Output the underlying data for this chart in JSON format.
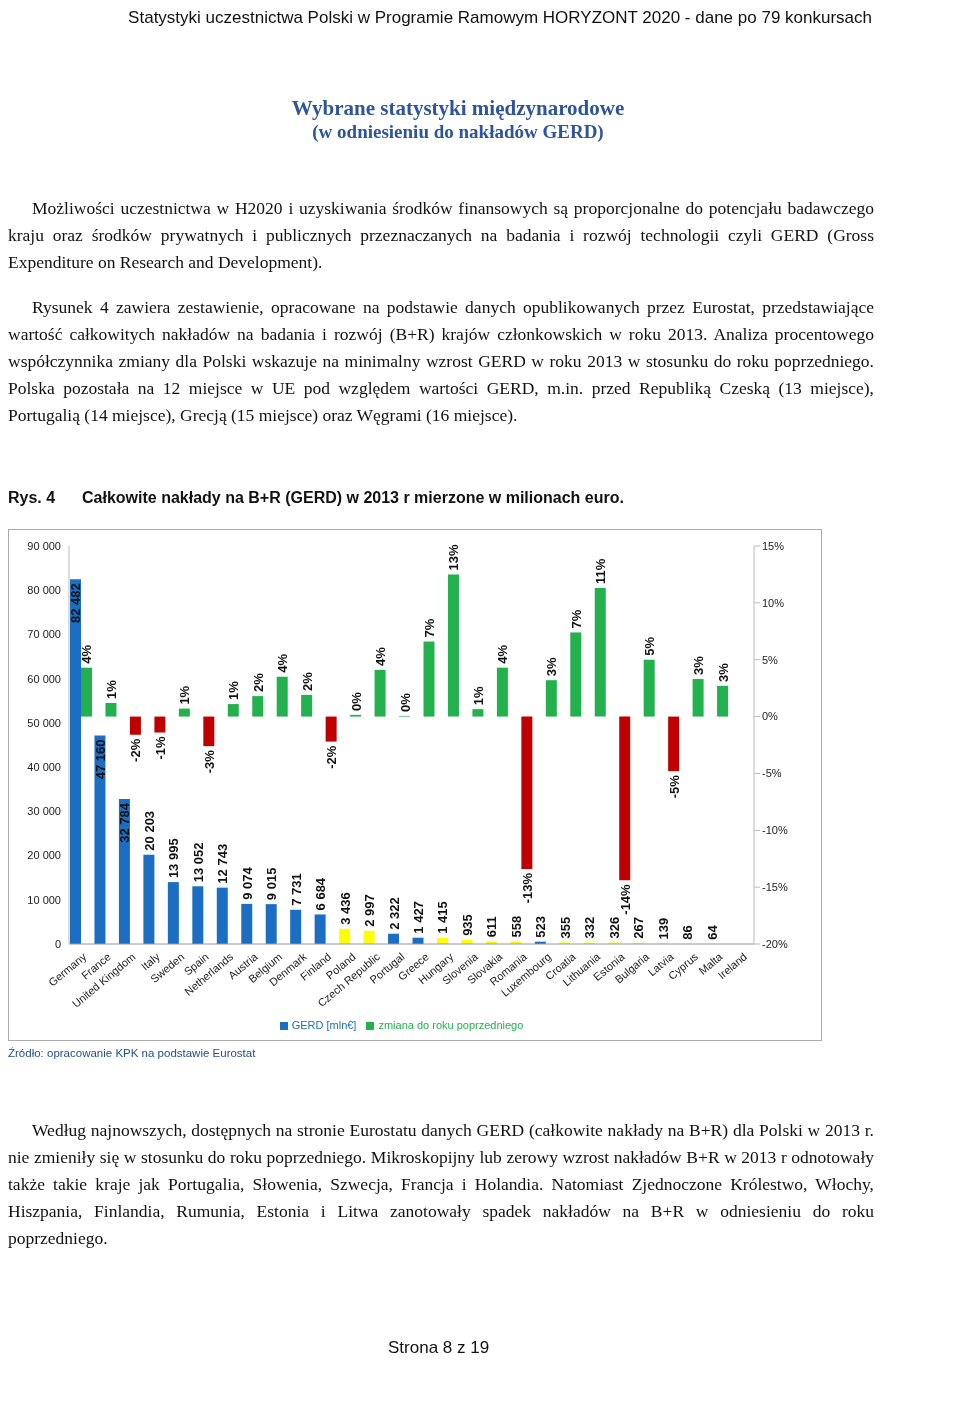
{
  "chart_data": {
    "type": "bar",
    "title": "Wybrane statystyki międzynarodowe",
    "subtitle": "(w odniesieniu do nakładów GERD)",
    "annotations": [
      "Statystyki uczestnictwa Polski w Programie Ramowym HORYZONT 2020 - dane po 79 konkursach",
      "Możliwości uczestnictwa w H2020 i uzyskiwania środków finansowych są proporcjonalne do potencjału badawczego kraju oraz środków prywatnych i publicznych przeznaczanych na badania i rozwój technologii czyli GERD (Gross Expenditure on Research and Development).",
      "Rysunek 4 zawiera zestawienie, opracowane na podstawie danych opublikowanych przez Eurostat, przedstawiające wartość całkowitych nakładów na badania i rozwój (B+R) krajów członkowskich w roku 2013. Analiza procentowego współczynnika zmiany dla Polski wskazuje na minimalny wzrost GERD w roku 2013 w stosunku do roku poprzedniego. Polska pozostała na 12 miejsce w UE pod względem wartości GERD, m.in. przed Republiką Czeską (13 miejsce), Portugalią (14 miejsce), Grecją (15 miejsce) oraz Węgrami (16 miejsce).",
      "Rys. 4",
      "Całkowite nakłady na B+R (GERD) w 2013 r mierzone w milionach euro.",
      "Źródło: opracowanie KPK na podstawie Eurostat",
      "Według najnowszych, dostępnych na stronie Eurostatu danych GERD (całkowite nakłady na B+R) dla Polski w 2013 r. nie zmieniły się w stosunku do roku poprzedniego. Mikroskopijny lub zerowy wzrost nakładów B+R w 2013 r odnotowały także takie kraje jak Portugalia, Słowenia, Szwecja, Francja i Holandia. Natomiast Zjednoczone Królestwo, Włochy, Hiszpania, Finlandia, Rumunia, Estonia i Litwa zanotowały spadek nakładów na B+R w odniesieniu do roku poprzedniego.",
      "Strona 8 z 19"
    ],
    "categories": [
      "Germany",
      "France",
      "United Kingdom",
      "Italy",
      "Sweden",
      "Spain",
      "Netherlands",
      "Austria",
      "Belgium",
      "Denmark",
      "Finland",
      "Poland",
      "Czech Republic",
      "Portugal",
      "Greece",
      "Hungary",
      "Slovenia",
      "Slovakia",
      "Romania",
      "Luxembourg",
      "Croatia",
      "Lithuania",
      "Estonia",
      "Bulgaria",
      "Latvia",
      "Cyprus",
      "Malta",
      "Ireland"
    ],
    "series": [
      {
        "name": "GERD [mln€]",
        "color": "#1b6ec2",
        "values": [
          82482,
          47160,
          32784,
          20203,
          13995,
          13052,
          12743,
          9074,
          9015,
          7731,
          6684,
          3436,
          2997,
          2322,
          1427,
          1415,
          935,
          611,
          558,
          523,
          355,
          332,
          326,
          267,
          139,
          86,
          64,
          null
        ],
        "colors": [
          "#1b6ec2",
          "#1b6ec2",
          "#1b6ec2",
          "#1b6ec2",
          "#1b6ec2",
          "#1b6ec2",
          "#1b6ec2",
          "#1b6ec2",
          "#1b6ec2",
          "#1b6ec2",
          "#1b6ec2",
          "#ffff00",
          "#ffff00",
          "#1b6ec2",
          "#1b6ec2",
          "#ffff00",
          "#ffff00",
          "#ffff00",
          "#ffff00",
          "#1b6ec2",
          "#ffff00",
          "#ffff00",
          "#ffff00",
          "#ffff00",
          "#ffff00",
          "#ffff00",
          "#ffff00",
          null
        ],
        "value_labels": [
          "82 482",
          "47 160",
          "32 784",
          "20 203",
          "13 995",
          "13 052",
          "12 743",
          "9 074",
          "9 015",
          "7 731",
          "6 684",
          "3 436",
          "2 997",
          "2 322",
          "1 427",
          "1 415",
          "935",
          "611",
          "558",
          "523",
          "355",
          "332",
          "326",
          "267",
          "139",
          "86",
          "64",
          null
        ]
      },
      {
        "name": "zmiana do roku poprzedniego",
        "axis": "y2",
        "color": "#22b14c",
        "values": [
          4.3,
          1.2,
          -1.6,
          -1.4,
          0.7,
          -2.6,
          1.1,
          1.8,
          3.5,
          1.9,
          -2.2,
          0.15,
          4.1,
          0.06,
          6.6,
          12.5,
          0.65,
          4.3,
          -13.4,
          3.2,
          7.4,
          11.3,
          -14.4,
          5.0,
          -4.8,
          3.3,
          2.7,
          null
        ],
        "colors": [
          "#22b14c",
          "#22b14c",
          "#c00000",
          "#c00000",
          "#22b14c",
          "#c00000",
          "#22b14c",
          "#22b14c",
          "#22b14c",
          "#22b14c",
          "#c00000",
          "#22b14c",
          "#22b14c",
          "#22b14c",
          "#22b14c",
          "#22b14c",
          "#22b14c",
          "#22b14c",
          "#c00000",
          "#22b14c",
          "#22b14c",
          "#22b14c",
          "#c00000",
          "#22b14c",
          "#c00000",
          "#22b14c",
          "#22b14c",
          null
        ],
        "value_labels": [
          "4%",
          "1%",
          "-2%",
          "-1%",
          "1%",
          "-3%",
          "1%",
          "2%",
          "4%",
          "2%",
          "-2%",
          "0%",
          "4%",
          "0%",
          "7%",
          "13%",
          "1%",
          "4%",
          "-13%",
          "3%",
          "7%",
          "11%",
          "-14%",
          "5%",
          "-5%",
          "3%",
          "3%",
          null
        ]
      }
    ],
    "ylim": [
      0,
      90000
    ],
    "yticks": [
      {
        "value": 0,
        "label": "0"
      },
      {
        "value": 10000,
        "label": "10 000"
      },
      {
        "value": 20000,
        "label": "20 000"
      },
      {
        "value": 30000,
        "label": "30 000"
      },
      {
        "value": 40000,
        "label": "40 000"
      },
      {
        "value": 50000,
        "label": "50 000"
      },
      {
        "value": 60000,
        "label": "60 000"
      },
      {
        "value": 70000,
        "label": "70 000"
      },
      {
        "value": 80000,
        "label": "80 000"
      },
      {
        "value": 90000,
        "label": "90 000"
      }
    ],
    "y2lim": [
      -20,
      15
    ],
    "y2ticks": [
      {
        "value": -20,
        "label": "-20%"
      },
      {
        "value": -15,
        "label": "-15%"
      },
      {
        "value": -10,
        "label": "-10%"
      },
      {
        "value": -5,
        "label": "-5%"
      },
      {
        "value": 0,
        "label": "0%"
      },
      {
        "value": 5,
        "label": "5%"
      },
      {
        "value": 10,
        "label": "10%"
      },
      {
        "value": 15,
        "label": "15%"
      }
    ],
    "legend": "bottom"
  }
}
